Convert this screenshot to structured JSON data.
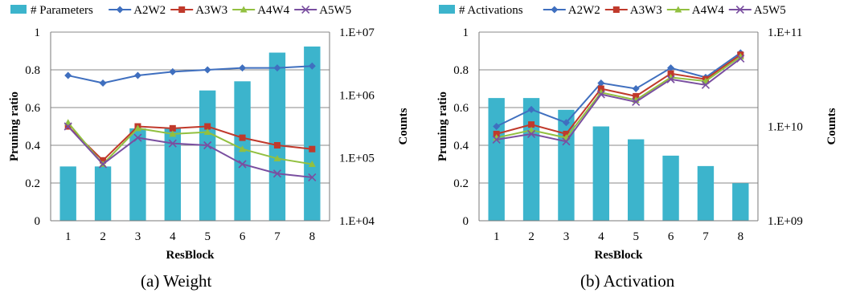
{
  "chart_data": [
    {
      "type": "bar",
      "caption": "(a) Weight",
      "categories": [
        "1",
        "2",
        "3",
        "4",
        "5",
        "6",
        "7",
        "8"
      ],
      "xlabel": "ResBlock",
      "ylabel": "Pruning ratio",
      "y2label": "Counts",
      "ylim": [
        0,
        1
      ],
      "yticks": [
        "0",
        "0.2",
        "0.4",
        "0.6",
        "0.8",
        "1"
      ],
      "y2scale": "log",
      "y2lim": [
        10000,
        10000000
      ],
      "y2ticks": [
        "1.E+04",
        "1.E+05",
        "1.E+06",
        "1.E+07"
      ],
      "grid": "horizontal",
      "legend": "top",
      "bars": {
        "name": "# Parameters",
        "axis": "secondary",
        "color": "#3cb4cc",
        "values": [
          73000,
          73000,
          295000,
          295000,
          1180000,
          1650000,
          4720000,
          5900000
        ]
      },
      "series": [
        {
          "name": "A2W2",
          "color": "#3f6fbf",
          "marker": "diamond",
          "values": [
            0.77,
            0.73,
            0.77,
            0.79,
            0.8,
            0.81,
            0.81,
            0.82
          ]
        },
        {
          "name": "A3W3",
          "color": "#c0392b",
          "marker": "square",
          "values": [
            0.5,
            0.32,
            0.5,
            0.49,
            0.5,
            0.44,
            0.4,
            0.38
          ]
        },
        {
          "name": "A4W4",
          "color": "#92c040",
          "marker": "triangle",
          "values": [
            0.52,
            0.3,
            0.49,
            0.46,
            0.47,
            0.38,
            0.33,
            0.3
          ]
        },
        {
          "name": "A5W5",
          "color": "#7a4fa0",
          "marker": "x",
          "values": [
            0.5,
            0.3,
            0.44,
            0.41,
            0.4,
            0.3,
            0.25,
            0.23
          ]
        }
      ]
    },
    {
      "type": "bar",
      "caption": "(b) Activation",
      "categories": [
        "1",
        "2",
        "3",
        "4",
        "5",
        "6",
        "7",
        "8"
      ],
      "xlabel": "ResBlock",
      "ylabel": "Pruning ratio",
      "y2label": "Counts",
      "ylim": [
        0,
        1
      ],
      "yticks": [
        "0",
        "0.2",
        "0.4",
        "0.6",
        "0.8",
        "1"
      ],
      "y2scale": "log",
      "y2lim": [
        1000000000,
        100000000000
      ],
      "y2ticks": [
        "1.E+09",
        "1.E+10",
        "1.E+11"
      ],
      "grid": "horizontal",
      "legend": "top",
      "bars": {
        "name": "# Activations",
        "axis": "secondary",
        "color": "#3cb4cc",
        "values": [
          20000000000,
          20000000000,
          15000000000,
          10000000000,
          7300000000,
          4900000000,
          3800000000,
          2500000000
        ]
      },
      "series": [
        {
          "name": "A2W2",
          "color": "#3f6fbf",
          "marker": "diamond",
          "values": [
            0.5,
            0.59,
            0.52,
            0.73,
            0.7,
            0.81,
            0.76,
            0.89
          ]
        },
        {
          "name": "A3W3",
          "color": "#c0392b",
          "marker": "square",
          "values": [
            0.46,
            0.51,
            0.46,
            0.7,
            0.66,
            0.78,
            0.75,
            0.88
          ]
        },
        {
          "name": "A4W4",
          "color": "#92c040",
          "marker": "triangle",
          "values": [
            0.44,
            0.48,
            0.44,
            0.68,
            0.64,
            0.76,
            0.74,
            0.87
          ]
        },
        {
          "name": "A5W5",
          "color": "#7a4fa0",
          "marker": "x",
          "values": [
            0.43,
            0.46,
            0.42,
            0.67,
            0.63,
            0.75,
            0.72,
            0.86
          ]
        }
      ]
    }
  ]
}
